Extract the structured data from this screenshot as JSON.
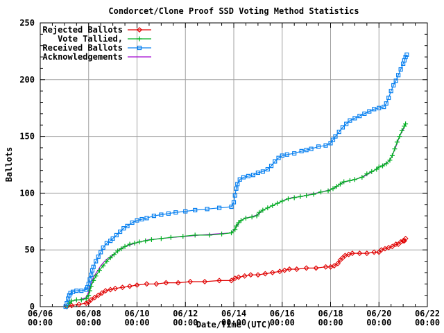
{
  "title": "Condorcet/Clone Proof SSD Voting Method Statistics",
  "x_axis_label": "Date/Time (UTC)",
  "y_axis_label": "Ballots",
  "chart_data": {
    "type": "line",
    "title": "Condorcet/Clone Proof SSD Voting Method Statistics",
    "xlabel": "Date/Time (UTC)",
    "ylabel": "Ballots",
    "x_unit": "days since 06/06 00:00 UTC",
    "xlim": [
      0,
      16
    ],
    "ylim": [
      0,
      250
    ],
    "grid": true,
    "grid_color": "#a0a0a0",
    "axis_color": "#000000",
    "legend_position": "top-left-inside",
    "x_ticks": [
      {
        "day": 0,
        "date": "06/06",
        "time": "00:00"
      },
      {
        "day": 2,
        "date": "06/08",
        "time": "00:00"
      },
      {
        "day": 4,
        "date": "06/10",
        "time": "00:00"
      },
      {
        "day": 6,
        "date": "06/12",
        "time": "00:00"
      },
      {
        "day": 8,
        "date": "06/14",
        "time": "00:00"
      },
      {
        "day": 10,
        "date": "06/16",
        "time": "00:00"
      },
      {
        "day": 12,
        "date": "06/18",
        "time": "00:00"
      },
      {
        "day": 14,
        "date": "06/20",
        "time": "00:00"
      },
      {
        "day": 16,
        "date": "06/22",
        "time": "00:00"
      }
    ],
    "x_minor_tick_step_days": 0.5,
    "y_ticks": [
      0,
      50,
      100,
      150,
      200,
      250
    ],
    "y_minor_tick_step": 10,
    "series": [
      {
        "id": "rejected-ballots",
        "legend_label": "Rejected Ballots",
        "color": "#e00000",
        "marker": "diamond",
        "draw_order": 1,
        "points": [
          [
            1.1,
            0
          ],
          [
            1.3,
            1
          ],
          [
            1.6,
            2
          ],
          [
            1.9,
            3
          ],
          [
            2.0,
            4
          ],
          [
            2.1,
            6
          ],
          [
            2.25,
            8
          ],
          [
            2.4,
            10
          ],
          [
            2.55,
            12
          ],
          [
            2.7,
            14
          ],
          [
            2.9,
            15
          ],
          [
            3.1,
            16
          ],
          [
            3.4,
            17
          ],
          [
            3.7,
            18
          ],
          [
            4.0,
            19
          ],
          [
            4.4,
            20
          ],
          [
            4.8,
            20
          ],
          [
            5.2,
            21
          ],
          [
            5.7,
            21
          ],
          [
            6.2,
            22
          ],
          [
            6.8,
            22
          ],
          [
            7.4,
            23
          ],
          [
            7.9,
            23
          ],
          [
            8.05,
            25
          ],
          [
            8.2,
            26
          ],
          [
            8.45,
            27
          ],
          [
            8.7,
            28
          ],
          [
            9.0,
            28
          ],
          [
            9.3,
            29
          ],
          [
            9.6,
            30
          ],
          [
            9.9,
            31
          ],
          [
            10.1,
            32
          ],
          [
            10.3,
            33
          ],
          [
            10.6,
            33
          ],
          [
            11.0,
            34
          ],
          [
            11.4,
            34
          ],
          [
            11.8,
            35
          ],
          [
            12.0,
            35
          ],
          [
            12.15,
            36
          ],
          [
            12.3,
            38
          ],
          [
            12.4,
            41
          ],
          [
            12.5,
            43
          ],
          [
            12.6,
            45
          ],
          [
            12.75,
            46
          ],
          [
            12.9,
            47
          ],
          [
            13.2,
            47
          ],
          [
            13.5,
            47
          ],
          [
            13.8,
            48
          ],
          [
            14.0,
            48
          ],
          [
            14.1,
            50
          ],
          [
            14.25,
            51
          ],
          [
            14.4,
            52
          ],
          [
            14.55,
            53
          ],
          [
            14.7,
            55
          ],
          [
            14.8,
            55
          ],
          [
            14.9,
            57
          ],
          [
            15.0,
            58
          ],
          [
            15.05,
            58
          ],
          [
            15.1,
            60
          ]
        ]
      },
      {
        "id": "acknowledgements",
        "legend_label": "Acknowledgements",
        "color": "#a000d0",
        "marker": "none",
        "draw_order": 2,
        "points": [
          [
            1.1,
            0
          ],
          [
            1.3,
            5
          ],
          [
            1.6,
            6
          ],
          [
            1.9,
            8
          ],
          [
            2.0,
            13
          ],
          [
            2.1,
            20
          ],
          [
            2.2,
            26
          ],
          [
            2.35,
            31
          ],
          [
            2.5,
            36
          ],
          [
            2.7,
            41
          ],
          [
            2.9,
            44
          ],
          [
            3.1,
            47
          ],
          [
            3.3,
            51
          ],
          [
            3.5,
            53
          ],
          [
            3.8,
            55
          ],
          [
            4.1,
            57
          ],
          [
            4.5,
            59
          ],
          [
            5.0,
            60
          ],
          [
            5.5,
            61
          ],
          [
            6.0,
            62
          ],
          [
            6.6,
            63
          ],
          [
            7.2,
            64
          ],
          [
            7.9,
            65
          ],
          [
            8.1,
            70
          ],
          [
            8.25,
            75
          ],
          [
            8.45,
            78
          ],
          [
            8.7,
            79
          ],
          [
            9.0,
            81
          ],
          [
            9.2,
            85
          ],
          [
            9.5,
            88
          ],
          [
            9.8,
            91
          ],
          [
            10.1,
            94
          ],
          [
            10.4,
            96
          ],
          [
            10.8,
            97
          ],
          [
            11.2,
            99
          ],
          [
            11.6,
            101
          ],
          [
            12.0,
            103
          ],
          [
            12.2,
            105
          ],
          [
            12.4,
            108
          ],
          [
            12.6,
            110
          ],
          [
            13.0,
            112
          ],
          [
            13.4,
            115
          ],
          [
            13.8,
            120
          ],
          [
            14.0,
            123
          ],
          [
            14.2,
            125
          ],
          [
            14.4,
            128
          ],
          [
            14.55,
            133
          ],
          [
            14.7,
            141
          ],
          [
            14.85,
            150
          ],
          [
            15.0,
            156
          ],
          [
            15.1,
            161
          ]
        ]
      },
      {
        "id": "vote-tallied",
        "legend_label": "Vote Tallied,",
        "color": "#00b020",
        "marker": "plus",
        "draw_order": 3,
        "points": [
          [
            1.1,
            0
          ],
          [
            1.2,
            3
          ],
          [
            1.3,
            5
          ],
          [
            1.5,
            6
          ],
          [
            1.7,
            6
          ],
          [
            1.9,
            7
          ],
          [
            2.0,
            10
          ],
          [
            2.05,
            14
          ],
          [
            2.1,
            18
          ],
          [
            2.2,
            23
          ],
          [
            2.3,
            27
          ],
          [
            2.45,
            32
          ],
          [
            2.6,
            36
          ],
          [
            2.75,
            40
          ],
          [
            2.9,
            43
          ],
          [
            3.05,
            46
          ],
          [
            3.2,
            49
          ],
          [
            3.35,
            51
          ],
          [
            3.5,
            53
          ],
          [
            3.7,
            55
          ],
          [
            3.9,
            56
          ],
          [
            4.1,
            57
          ],
          [
            4.35,
            58
          ],
          [
            4.6,
            59
          ],
          [
            5.0,
            60
          ],
          [
            5.4,
            61
          ],
          [
            5.9,
            62
          ],
          [
            6.4,
            63
          ],
          [
            7.0,
            63
          ],
          [
            7.5,
            64
          ],
          [
            7.9,
            65
          ],
          [
            8.05,
            68
          ],
          [
            8.1,
            71
          ],
          [
            8.2,
            74
          ],
          [
            8.3,
            76
          ],
          [
            8.5,
            78
          ],
          [
            8.75,
            79
          ],
          [
            8.95,
            80
          ],
          [
            9.05,
            83
          ],
          [
            9.2,
            85
          ],
          [
            9.4,
            87
          ],
          [
            9.6,
            89
          ],
          [
            9.8,
            91
          ],
          [
            10.0,
            93
          ],
          [
            10.25,
            95
          ],
          [
            10.5,
            96
          ],
          [
            10.75,
            97
          ],
          [
            11.0,
            98
          ],
          [
            11.3,
            99
          ],
          [
            11.6,
            101
          ],
          [
            11.9,
            102
          ],
          [
            12.1,
            104
          ],
          [
            12.25,
            106
          ],
          [
            12.4,
            108
          ],
          [
            12.55,
            110
          ],
          [
            12.8,
            111
          ],
          [
            13.0,
            112
          ],
          [
            13.3,
            114
          ],
          [
            13.5,
            117
          ],
          [
            13.7,
            119
          ],
          [
            13.9,
            121
          ],
          [
            14.0,
            123
          ],
          [
            14.15,
            124
          ],
          [
            14.3,
            126
          ],
          [
            14.45,
            129
          ],
          [
            14.55,
            133
          ],
          [
            14.65,
            139
          ],
          [
            14.75,
            145
          ],
          [
            14.85,
            150
          ],
          [
            14.95,
            155
          ],
          [
            15.05,
            159
          ],
          [
            15.1,
            161
          ]
        ]
      },
      {
        "id": "received-ballots",
        "legend_label": "Received Ballots",
        "color": "#0880f0",
        "marker": "square",
        "draw_order": 4,
        "points": [
          [
            1.05,
            0
          ],
          [
            1.1,
            3
          ],
          [
            1.15,
            7
          ],
          [
            1.2,
            10
          ],
          [
            1.25,
            12
          ],
          [
            1.35,
            13
          ],
          [
            1.5,
            14
          ],
          [
            1.7,
            14
          ],
          [
            1.9,
            15
          ],
          [
            1.95,
            17
          ],
          [
            2.0,
            20
          ],
          [
            2.05,
            24
          ],
          [
            2.1,
            28
          ],
          [
            2.15,
            32
          ],
          [
            2.2,
            35
          ],
          [
            2.3,
            40
          ],
          [
            2.4,
            44
          ],
          [
            2.5,
            48
          ],
          [
            2.6,
            52
          ],
          [
            2.75,
            56
          ],
          [
            2.9,
            58
          ],
          [
            3.0,
            60
          ],
          [
            3.15,
            63
          ],
          [
            3.3,
            66
          ],
          [
            3.45,
            69
          ],
          [
            3.6,
            71
          ],
          [
            3.8,
            74
          ],
          [
            4.0,
            76
          ],
          [
            4.2,
            77
          ],
          [
            4.4,
            78
          ],
          [
            4.7,
            80
          ],
          [
            5.0,
            81
          ],
          [
            5.3,
            82
          ],
          [
            5.6,
            83
          ],
          [
            6.0,
            84
          ],
          [
            6.4,
            85
          ],
          [
            6.9,
            86
          ],
          [
            7.4,
            87
          ],
          [
            7.9,
            88
          ],
          [
            8.0,
            92
          ],
          [
            8.05,
            98
          ],
          [
            8.1,
            104
          ],
          [
            8.15,
            108
          ],
          [
            8.25,
            112
          ],
          [
            8.4,
            114
          ],
          [
            8.6,
            115
          ],
          [
            8.8,
            116
          ],
          [
            9.0,
            118
          ],
          [
            9.2,
            119
          ],
          [
            9.4,
            121
          ],
          [
            9.55,
            124
          ],
          [
            9.7,
            128
          ],
          [
            9.85,
            131
          ],
          [
            10.0,
            133
          ],
          [
            10.2,
            134
          ],
          [
            10.5,
            135
          ],
          [
            10.8,
            137
          ],
          [
            11.0,
            138
          ],
          [
            11.2,
            139
          ],
          [
            11.5,
            141
          ],
          [
            11.8,
            142
          ],
          [
            12.0,
            144
          ],
          [
            12.1,
            147
          ],
          [
            12.2,
            150
          ],
          [
            12.35,
            154
          ],
          [
            12.5,
            158
          ],
          [
            12.65,
            161
          ],
          [
            12.8,
            164
          ],
          [
            13.0,
            166
          ],
          [
            13.2,
            168
          ],
          [
            13.4,
            170
          ],
          [
            13.6,
            172
          ],
          [
            13.8,
            174
          ],
          [
            14.0,
            175
          ],
          [
            14.2,
            176
          ],
          [
            14.3,
            179
          ],
          [
            14.4,
            184
          ],
          [
            14.5,
            190
          ],
          [
            14.6,
            195
          ],
          [
            14.7,
            199
          ],
          [
            14.8,
            204
          ],
          [
            14.9,
            209
          ],
          [
            15.0,
            214
          ],
          [
            15.05,
            217
          ],
          [
            15.1,
            220
          ],
          [
            15.15,
            222
          ]
        ]
      }
    ],
    "legend_order": [
      "rejected-ballots",
      "vote-tallied",
      "received-ballots",
      "acknowledgements"
    ]
  }
}
